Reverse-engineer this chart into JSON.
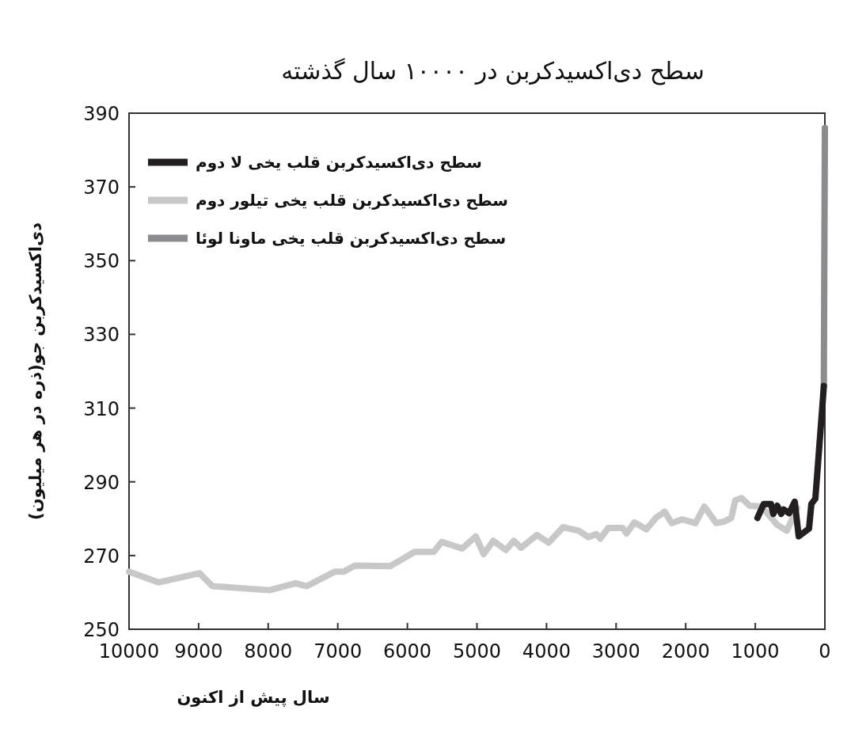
{
  "chart_data": {
    "type": "line",
    "title": "سطح دی‌اکسیدکربن در ۱۰۰۰۰ سال گذشته",
    "xlabel": "سال پیش از اکنون",
    "ylabel": "دی‌اکسیدکربن جو(ذره در هر میلیون)",
    "xlim": [
      10000,
      0
    ],
    "xticks": [
      10000,
      9000,
      8000,
      7000,
      6000,
      5000,
      4000,
      3000,
      2000,
      1000,
      0
    ],
    "ylim": [
      250,
      390
    ],
    "yticks": [
      250,
      270,
      290,
      310,
      330,
      350,
      370,
      390
    ],
    "grid": false,
    "legend": "top left",
    "marker": "none",
    "line_style": "solid",
    "series": [
      {
        "name": "سطح دی‌اکسیدکربن قلب یخی لا دوم",
        "color": "#231f20",
        "x": [
          969,
          878,
          775,
          741,
          684,
          627,
          593,
          513,
          433,
          376,
          228,
          194,
          137,
          80,
          30,
          15
        ],
        "values": [
          280.2,
          284,
          284,
          281.3,
          283.5,
          281.3,
          282.5,
          281.5,
          284.6,
          275.2,
          277.3,
          284,
          285.4,
          299.6,
          312,
          316
        ]
      },
      {
        "name": "سطح دی‌اکسیدکربن قلب یخی تیلور دوم",
        "color": "#c8c8c8",
        "x": [
          10000,
          9578,
          8985,
          8803,
          7982,
          7605,
          7446,
          7047,
          6921,
          6750,
          6249,
          5895,
          5621,
          5507,
          5211,
          5017,
          4903,
          4766,
          4584,
          4470,
          4367,
          4139,
          3968,
          3763,
          3535,
          3398,
          3284,
          3227,
          3113,
          2908,
          2851,
          2737,
          2566,
          2429,
          2303,
          2201,
          2052,
          1859,
          1733,
          1562,
          1448,
          1345,
          1288,
          1197,
          1083,
          912,
          684,
          547,
          399
        ],
        "values": [
          265.6,
          262.7,
          265.2,
          261.7,
          260.6,
          262.5,
          261.7,
          265.6,
          265.6,
          267.3,
          267.1,
          271,
          271,
          273.7,
          271.9,
          275.2,
          270.4,
          274,
          271.5,
          274,
          272.1,
          275.6,
          273.5,
          277.7,
          276.7,
          275,
          275.8,
          274.6,
          277.5,
          277.5,
          276,
          279,
          277.1,
          280.2,
          281.9,
          278.8,
          279.8,
          278.8,
          283.3,
          278.8,
          279.2,
          280.2,
          285,
          285.6,
          283.5,
          283.3,
          278.3,
          276.7,
          282.9
        ]
      },
      {
        "name": "سطح دی‌اکسیدکربن قلب یخی ماونا لوئا",
        "color": "#8c8c90",
        "x": [
          15,
          0
        ],
        "values": [
          316,
          386
        ]
      }
    ]
  }
}
